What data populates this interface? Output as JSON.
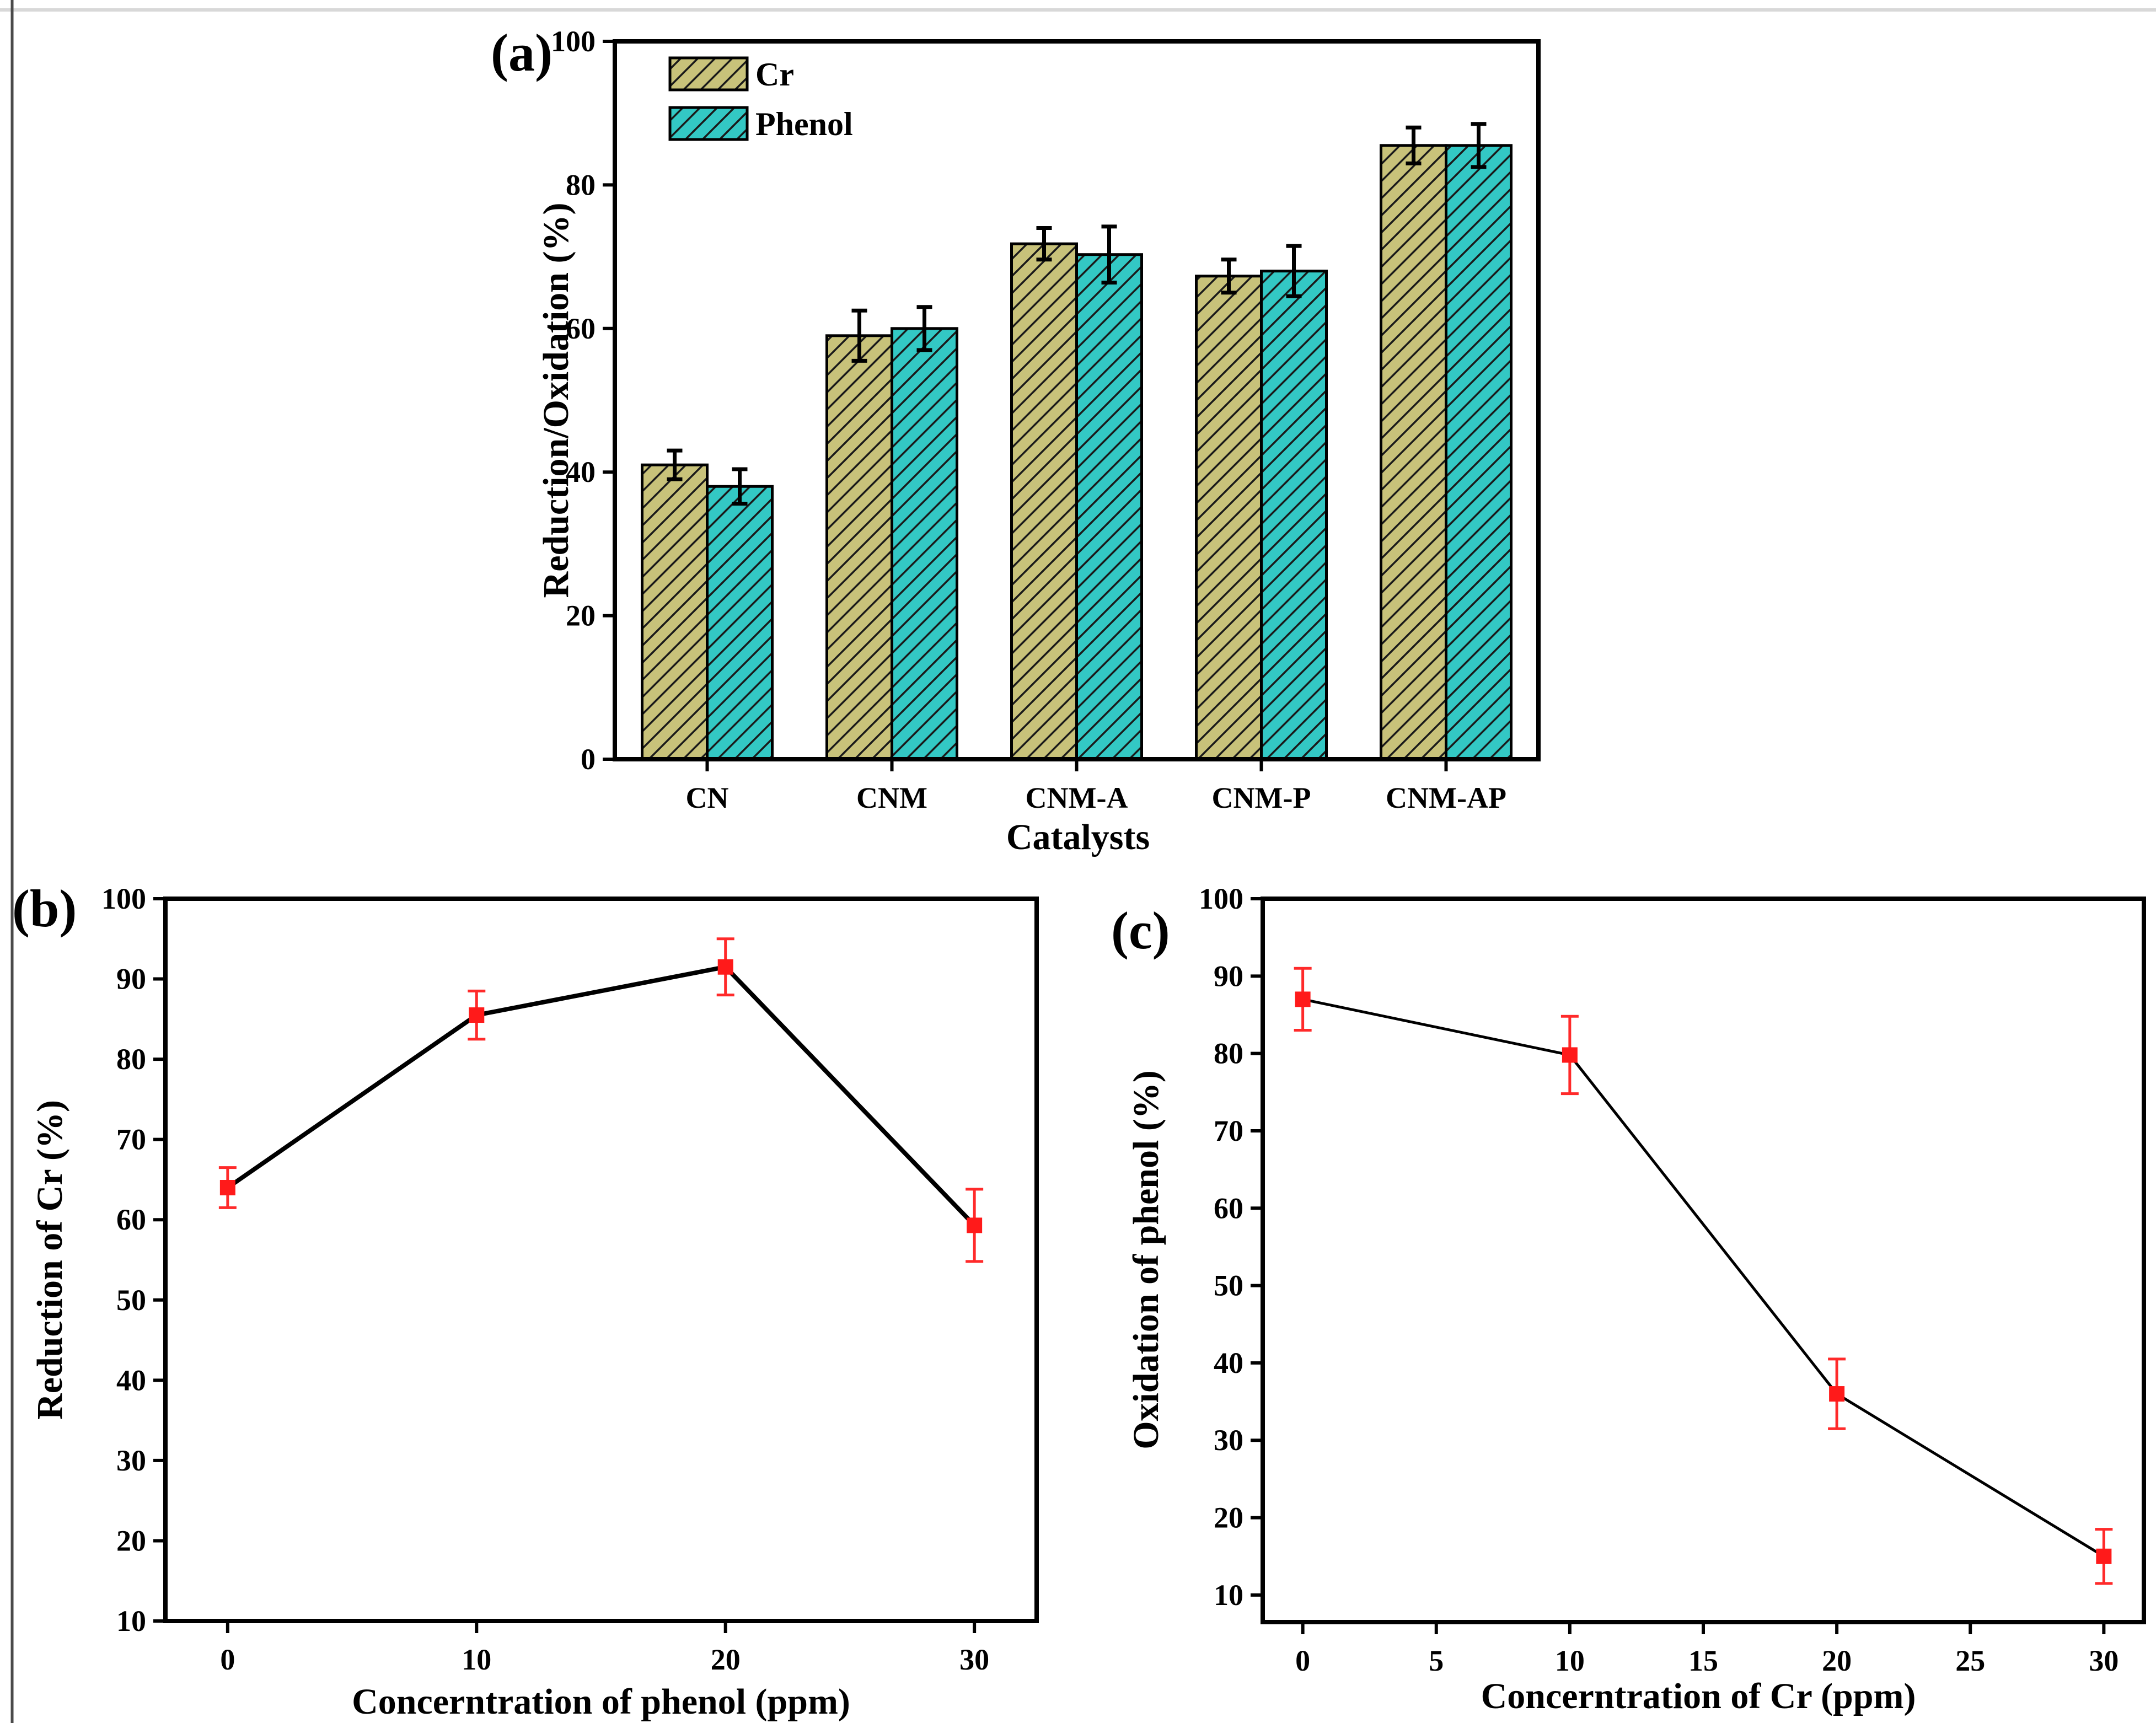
{
  "colors": {
    "cr_fill": "#c8c27a",
    "phenol_fill": "#33c8c4",
    "hatch": "#1a1a1a",
    "marker": "#ff1a1a",
    "errorbar_red": "#ff2a2a",
    "line": "#000000"
  },
  "chart_data": [
    {
      "panel": "(a)",
      "type": "bar",
      "categories": [
        "CN",
        "CNM",
        "CNM-A",
        "CNM-P",
        "CNM-AP"
      ],
      "series": [
        {
          "name": "Cr",
          "values": [
            41,
            59,
            71.8,
            67.3,
            85.5
          ],
          "errors": [
            2,
            3.5,
            2.2,
            2.3,
            2.5
          ]
        },
        {
          "name": "Phenol",
          "values": [
            38,
            60,
            70.3,
            68,
            85.5
          ],
          "errors": [
            2.4,
            3,
            3.9,
            3.5,
            3
          ]
        }
      ],
      "xlabel": "Catalysts",
      "ylabel": "Reduction/Oxidation (%)",
      "ylim": [
        0,
        100
      ],
      "yticks": [
        0,
        20,
        40,
        60,
        80,
        100
      ],
      "legend_position": "top-left"
    },
    {
      "panel": "(b)",
      "type": "line",
      "x": [
        0,
        10,
        20,
        30
      ],
      "values": [
        64,
        85.5,
        91.5,
        59.3
      ],
      "errors": [
        2.5,
        3,
        3.5,
        4.5
      ],
      "xlabel": "Concerntration of phenol (ppm)",
      "ylabel": "Reduction of Cr (%)",
      "xlim": [
        -2.5,
        32.5
      ],
      "xticks": [
        0,
        10,
        20,
        30
      ],
      "ylim": [
        10,
        100
      ],
      "yticks": [
        10,
        20,
        30,
        40,
        50,
        60,
        70,
        80,
        90,
        100
      ]
    },
    {
      "panel": "(c)",
      "type": "line",
      "x": [
        0,
        10,
        20,
        30
      ],
      "values": [
        87,
        79.8,
        36,
        15
      ],
      "errors": [
        4,
        5,
        4.5,
        3.5
      ],
      "xlabel": "Concerntration of Cr (ppm)",
      "ylabel": "Oxidation of phenol (%)",
      "xlim": [
        -1.5,
        31.5
      ],
      "xticks": [
        0,
        5,
        10,
        15,
        20,
        25,
        30
      ],
      "ylim": [
        6.5,
        100
      ],
      "yticks": [
        10,
        20,
        30,
        40,
        50,
        60,
        70,
        80,
        90,
        100
      ]
    }
  ]
}
